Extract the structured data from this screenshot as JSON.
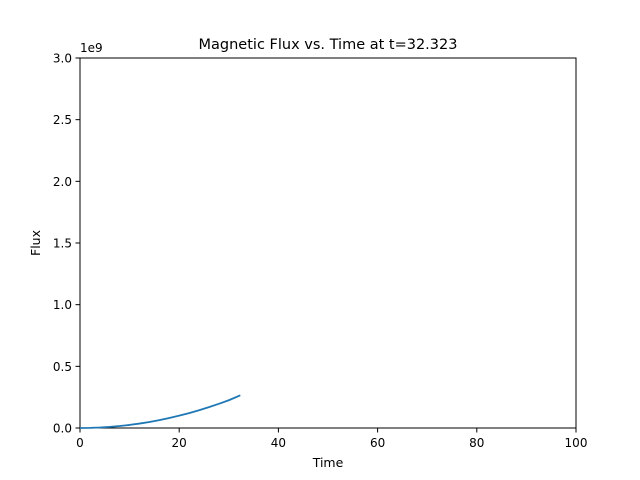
{
  "figure": {
    "background": "#ffffff",
    "series_color": "#1f77b4"
  },
  "chart_data": {
    "type": "line",
    "title": "Magnetic Flux vs. Time at t=32.323",
    "xlabel": "Time",
    "ylabel": "Flux",
    "offset_text": "1e9",
    "xlim": [
      0,
      100
    ],
    "ylim": [
      0,
      3.0
    ],
    "y_scale_note": "values in units of 1e9",
    "x_ticks": [
      0,
      20,
      40,
      60,
      80,
      100
    ],
    "x_tick_labels": [
      "0",
      "20",
      "40",
      "60",
      "80",
      "100"
    ],
    "y_ticks": [
      0,
      0.5,
      1.0,
      1.5,
      2.0,
      2.5,
      3.0
    ],
    "y_tick_labels": [
      "0.0",
      "0.5",
      "1.0",
      "1.5",
      "2.0",
      "2.5",
      "3.0"
    ],
    "grid": false,
    "legend": "none",
    "series": [
      {
        "x": [
          0,
          2,
          4,
          6,
          8,
          10,
          12,
          14,
          16,
          18,
          20,
          22,
          24,
          26,
          28,
          30,
          32.323
        ],
        "values": [
          0.0,
          0.001,
          0.004,
          0.009,
          0.016,
          0.025,
          0.036,
          0.049,
          0.064,
          0.081,
          0.1,
          0.121,
          0.144,
          0.169,
          0.196,
          0.225,
          0.265
        ]
      }
    ]
  }
}
